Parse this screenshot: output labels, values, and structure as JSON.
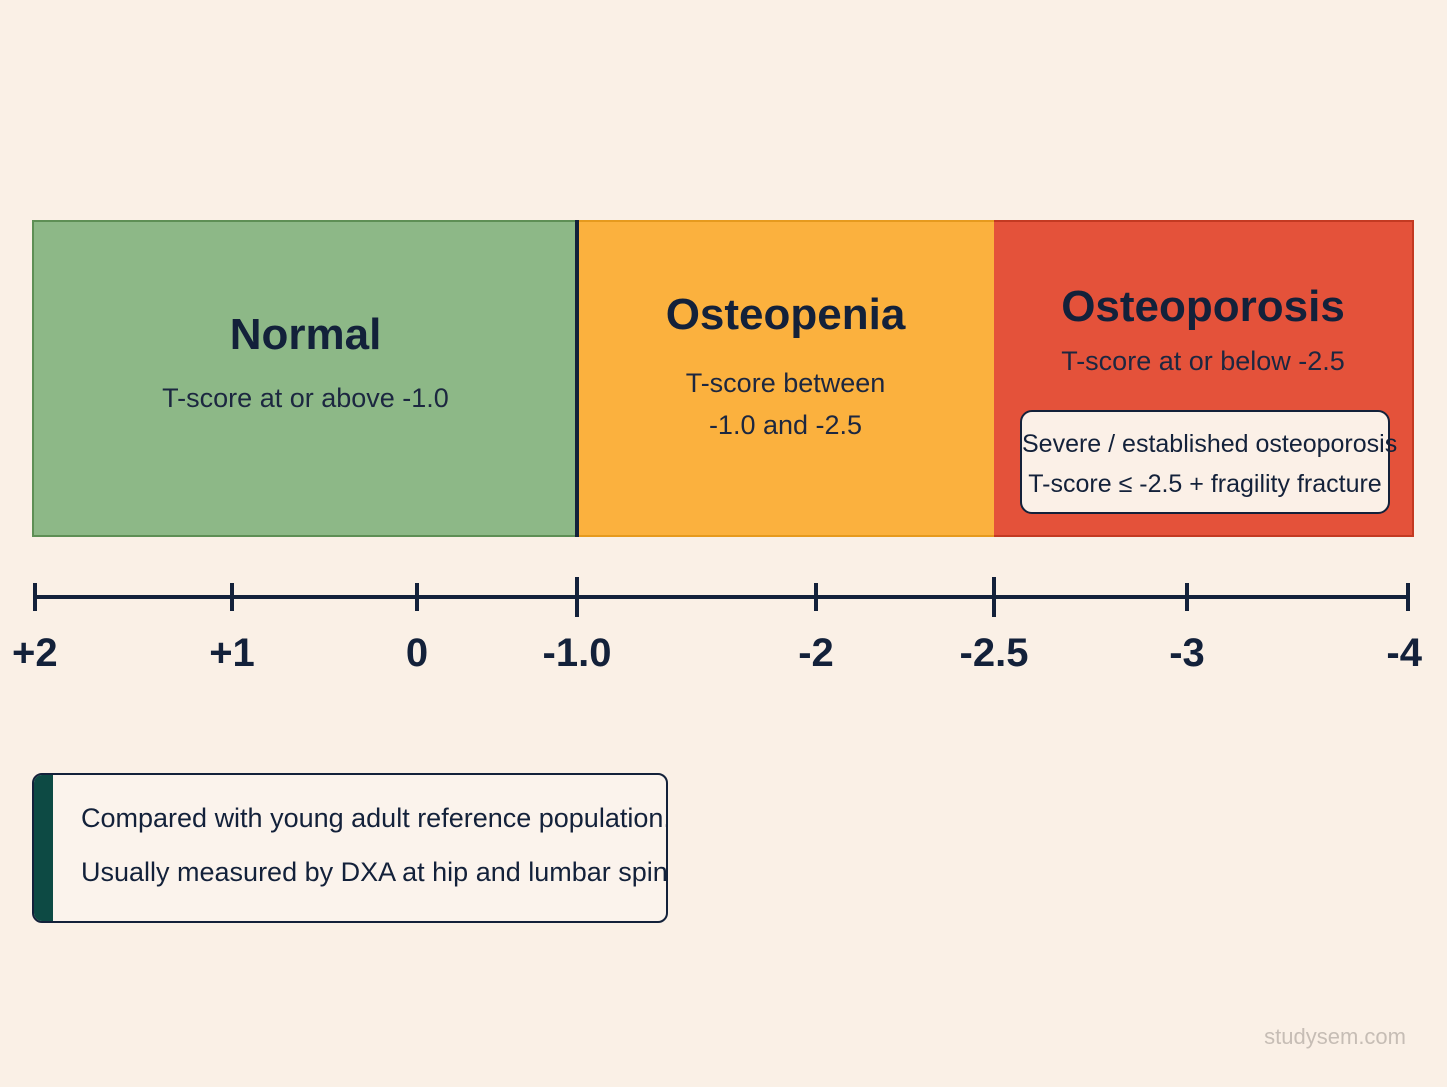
{
  "zones": [
    {
      "title": "Normal",
      "desc": [
        "T-score at or above -1.0"
      ],
      "color": "#8db887"
    },
    {
      "title": "Osteopenia",
      "desc": [
        "T-score between",
        "-1.0 and -2.5"
      ],
      "color": "#fbb13e"
    },
    {
      "title": "Osteoporosis",
      "desc": [
        "T-score at or below -2.5"
      ],
      "color": "#e4523a"
    }
  ],
  "severe": {
    "line1": "Severe / established osteoporosis",
    "line2": "T-score ≤ -2.5 + fragility fracture"
  },
  "axis": {
    "ticks": [
      {
        "value": 2,
        "label": "+2",
        "major": false
      },
      {
        "value": 1,
        "label": "+1",
        "major": false
      },
      {
        "value": 0,
        "label": "0",
        "major": false
      },
      {
        "value": -1,
        "label": "-1.0",
        "major": true
      },
      {
        "value": -2,
        "label": "-2",
        "major": false
      },
      {
        "value": -2.5,
        "label": "-2.5",
        "major": true
      },
      {
        "value": -3,
        "label": "-3",
        "major": false
      },
      {
        "value": -4,
        "label": "-4",
        "major": false
      }
    ]
  },
  "note": {
    "line1": "Compared with young adult reference population.",
    "line2": "Usually measured by DXA at hip and lumbar spine."
  },
  "watermark": "studysem.com",
  "colors": {
    "ink": "#13213a",
    "background": "#faf0e6",
    "accent_bar": "#0d4a44"
  }
}
